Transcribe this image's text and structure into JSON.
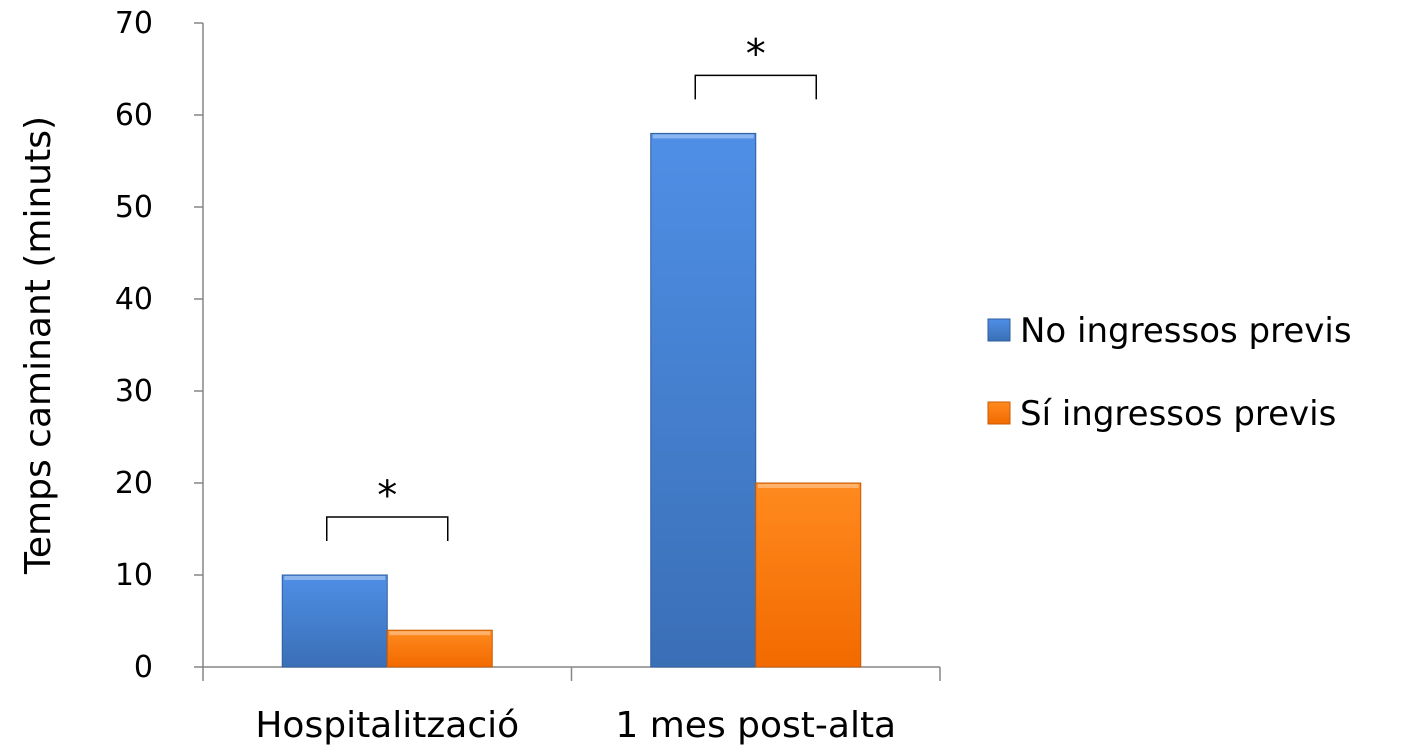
{
  "chart_data": {
    "type": "bar",
    "categories": [
      "Hospitalització",
      "1 mes post-alta"
    ],
    "series": [
      {
        "name": "No ingressos previs",
        "values": [
          10,
          58
        ],
        "color": "#4a86d8"
      },
      {
        "name": "Sí ingressos previs",
        "values": [
          4,
          20
        ],
        "color": "#ff7a12"
      }
    ],
    "ylabel": "Temps caminant (minuts)",
    "xlabel": "",
    "ylim": [
      0,
      70
    ],
    "yticks": [
      "0",
      "10",
      "20",
      "30",
      "40",
      "50",
      "60",
      "70"
    ],
    "grid": false,
    "legend_position": "right",
    "annotations": [
      {
        "category": "Hospitalització",
        "text": "*"
      },
      {
        "category": "1 mes post-alta",
        "text": "*"
      }
    ]
  }
}
